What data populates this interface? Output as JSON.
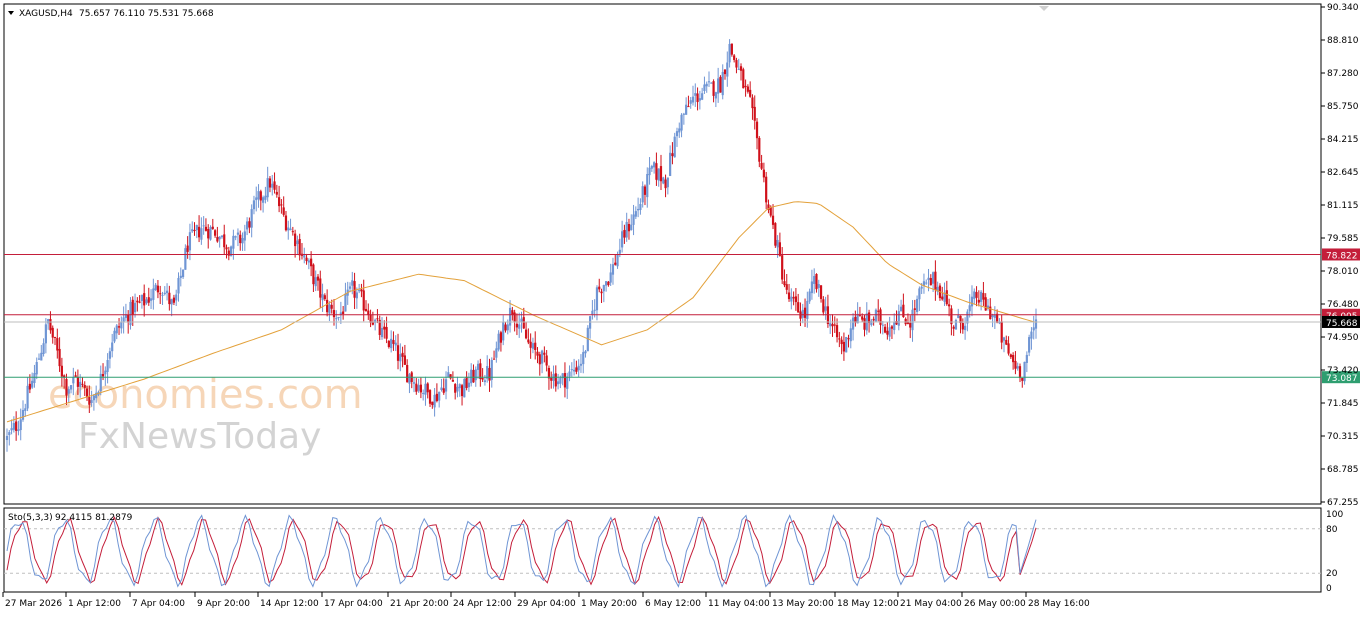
{
  "header": {
    "symbol": "XAGUSD,H4",
    "ohlc": "75.657 76.110 75.531 75.668"
  },
  "indicator": {
    "label": "Sto(5,3,3)",
    "values": "92.4115 81.2879",
    "levels": [
      "100",
      "80",
      "20",
      "0"
    ]
  },
  "watermark": {
    "line1": "economies.com",
    "line2": "FxNewsToday"
  },
  "colors": {
    "bull": "#6f95d4",
    "bear": "#d0101a",
    "ma": "#e3a13a",
    "resistance": "#c41e3a",
    "support": "#2e9e70",
    "stoch_main": "#6f95d4",
    "stoch_signal": "#c41e3a"
  },
  "chart_data": {
    "type": "candlestick",
    "symbol": "XAGUSD",
    "timeframe": "H4",
    "y_ticks": [
      "90.340",
      "88.810",
      "87.280",
      "85.750",
      "84.215",
      "82.645",
      "81.115",
      "79.585",
      "78.010",
      "76.480",
      "74.950",
      "73.420",
      "71.845",
      "70.315",
      "68.785",
      "67.255"
    ],
    "ylim": [
      67.255,
      90.34
    ],
    "x_ticks": [
      "27 Mar 2026",
      "1 Apr 12:00",
      "7 Apr 04:00",
      "9 Apr 20:00",
      "14 Apr 12:00",
      "17 Apr 04:00",
      "21 Apr 20:00",
      "24 Apr 12:00",
      "29 Apr 04:00",
      "1 May 20:00",
      "6 May 12:00",
      "11 May 04:00",
      "13 May 20:00",
      "18 May 12:00",
      "21 May 04:00",
      "26 May 00:00",
      "28 May 16:00"
    ],
    "horizontal_levels": [
      {
        "label": "78.822",
        "value": 78.822,
        "role": "resistance"
      },
      {
        "label": "76.005",
        "value": 76.005,
        "role": "resistance"
      },
      {
        "label": "75.668",
        "value": 75.668,
        "role": "current"
      },
      {
        "label": "73.087",
        "value": 73.087,
        "role": "support"
      }
    ],
    "path_points": [
      [
        0,
        70.2
      ],
      [
        5,
        71.0
      ],
      [
        12,
        73.2
      ],
      [
        18,
        75.7
      ],
      [
        22,
        74.2
      ],
      [
        26,
        72.6
      ],
      [
        30,
        73.0
      ],
      [
        37,
        72.0
      ],
      [
        41,
        73.0
      ],
      [
        46,
        74.9
      ],
      [
        51,
        75.8
      ],
      [
        55,
        76.3
      ],
      [
        61,
        76.7
      ],
      [
        67,
        77.4
      ],
      [
        73,
        76.3
      ],
      [
        79,
        79.3
      ],
      [
        85,
        80.1
      ],
      [
        91,
        79.9
      ],
      [
        97,
        79.2
      ],
      [
        103,
        79.6
      ],
      [
        109,
        81.2
      ],
      [
        115,
        82.2
      ],
      [
        121,
        80.6
      ],
      [
        127,
        79.4
      ],
      [
        133,
        78.0
      ],
      [
        139,
        76.5
      ],
      [
        145,
        75.9
      ],
      [
        151,
        77.2
      ],
      [
        157,
        76.4
      ],
      [
        163,
        75.2
      ],
      [
        169,
        74.5
      ],
      [
        175,
        73.3
      ],
      [
        181,
        72.6
      ],
      [
        187,
        72.1
      ],
      [
        193,
        73.1
      ],
      [
        199,
        72.5
      ],
      [
        205,
        73.3
      ],
      [
        211,
        73.2
      ],
      [
        217,
        75.5
      ],
      [
        221,
        76.3
      ],
      [
        225,
        75.4
      ],
      [
        229,
        74.4
      ],
      [
        233,
        74.1
      ],
      [
        238,
        73.2
      ],
      [
        242,
        72.9
      ],
      [
        246,
        73.2
      ],
      [
        252,
        74.0
      ],
      [
        258,
        77.1
      ],
      [
        264,
        77.9
      ],
      [
        270,
        79.8
      ],
      [
        276,
        81.0
      ],
      [
        282,
        82.8
      ],
      [
        288,
        82.3
      ],
      [
        294,
        85.0
      ],
      [
        300,
        86.1
      ],
      [
        306,
        86.5
      ],
      [
        312,
        86.8
      ],
      [
        316,
        88.5
      ],
      [
        321,
        87.1
      ],
      [
        325,
        85.8
      ],
      [
        329,
        83.5
      ],
      [
        333,
        81.0
      ],
      [
        337,
        79.1
      ],
      [
        341,
        76.9
      ],
      [
        345,
        76.3
      ],
      [
        349,
        76.0
      ],
      [
        353,
        77.6
      ],
      [
        358,
        76.2
      ],
      [
        362,
        75.1
      ],
      [
        366,
        74.4
      ],
      [
        370,
        75.9
      ],
      [
        375,
        75.6
      ],
      [
        380,
        75.9
      ],
      [
        385,
        75.4
      ],
      [
        390,
        76.1
      ],
      [
        395,
        75.7
      ],
      [
        400,
        77.2
      ],
      [
        405,
        77.6
      ],
      [
        410,
        76.9
      ],
      [
        414,
        75.5
      ],
      [
        419,
        75.8
      ],
      [
        424,
        76.9
      ],
      [
        428,
        76.4
      ],
      [
        432,
        75.9
      ],
      [
        436,
        74.6
      ],
      [
        440,
        73.8
      ],
      [
        444,
        73.3
      ],
      [
        448,
        75.0
      ],
      [
        450,
        75.668
      ]
    ],
    "moving_average": [
      [
        0,
        71.0
      ],
      [
        30,
        72.0
      ],
      [
        60,
        73.0
      ],
      [
        90,
        74.2
      ],
      [
        120,
        75.3
      ],
      [
        150,
        77.1
      ],
      [
        180,
        77.9
      ],
      [
        200,
        77.6
      ],
      [
        230,
        76.0
      ],
      [
        260,
        74.6
      ],
      [
        280,
        75.3
      ],
      [
        300,
        76.8
      ],
      [
        320,
        79.6
      ],
      [
        333,
        81.0
      ],
      [
        345,
        81.3
      ],
      [
        355,
        81.2
      ],
      [
        370,
        80.1
      ],
      [
        385,
        78.4
      ],
      [
        400,
        77.4
      ],
      [
        420,
        76.6
      ],
      [
        445,
        75.8
      ],
      [
        450,
        75.65
      ]
    ],
    "stochastic": {
      "name": "Sto(5,3,3)",
      "main_last": 92.4115,
      "signal_last": 81.2879,
      "levels": [
        0,
        20,
        80,
        100
      ]
    },
    "grid": false
  }
}
